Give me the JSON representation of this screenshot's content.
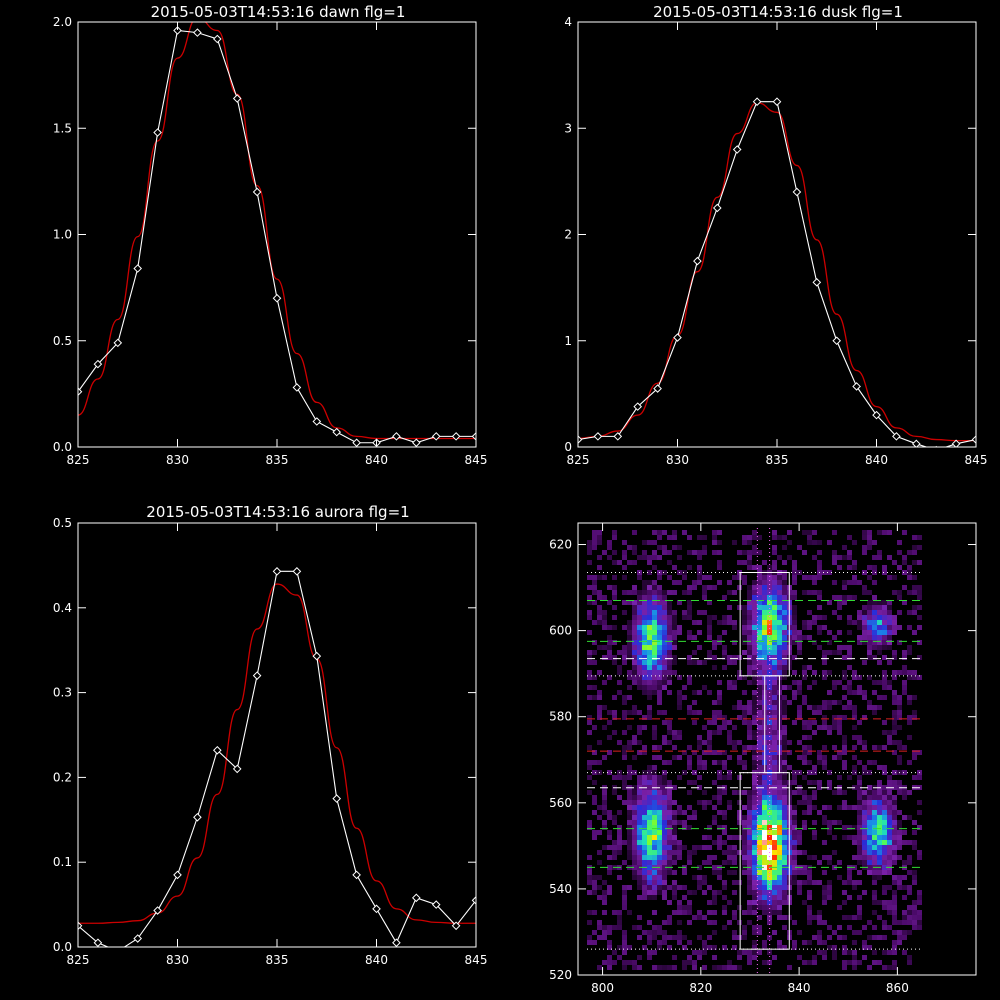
{
  "colors": {
    "background": "#000000",
    "axes": "#ffffff",
    "data_line": "#ffffff",
    "fit_line": "#cc0000"
  },
  "chart_data": [
    {
      "type": "line",
      "title": "2015-05-03T14:53:16 dawn flg=1",
      "xlabel": "",
      "ylabel": "",
      "xlim": [
        825,
        845
      ],
      "ylim": [
        0.0,
        2.0
      ],
      "xticks": [
        825,
        830,
        835,
        840,
        845
      ],
      "yticks": [
        0.0,
        0.5,
        1.0,
        1.5,
        2.0
      ],
      "ytick_labels": [
        "0.0",
        "0.5",
        "1.0",
        "1.5",
        "2.0"
      ],
      "series": [
        {
          "style": "white-line-diamond-markers",
          "x": [
            825,
            826,
            827,
            828,
            829,
            830,
            831,
            832,
            833,
            834,
            835,
            836,
            837,
            838,
            839,
            840,
            841,
            842,
            843,
            844,
            845
          ],
          "y": [
            0.26,
            0.39,
            0.49,
            0.84,
            1.48,
            1.96,
            1.95,
            1.92,
            1.64,
            1.2,
            0.7,
            0.28,
            0.12,
            0.07,
            0.02,
            0.02,
            0.05,
            0.02,
            0.05,
            0.05,
            0.05
          ]
        },
        {
          "style": "red-gaussian-fit",
          "x": [
            825,
            826,
            827,
            828,
            829,
            830,
            831,
            832,
            833,
            834,
            835,
            836,
            837,
            838,
            839,
            840,
            841,
            842,
            843,
            844,
            845
          ],
          "y": [
            0.15,
            0.32,
            0.6,
            0.99,
            1.44,
            1.83,
            2.02,
            1.96,
            1.66,
            1.23,
            0.79,
            0.44,
            0.21,
            0.09,
            0.05,
            0.04,
            0.04,
            0.04,
            0.04,
            0.04,
            0.04
          ]
        }
      ]
    },
    {
      "type": "line",
      "title": "2015-05-03T14:53:16 dusk flg=1",
      "xlabel": "",
      "ylabel": "",
      "xlim": [
        825,
        845
      ],
      "ylim": [
        0,
        4
      ],
      "xticks": [
        825,
        830,
        835,
        840,
        845
      ],
      "yticks": [
        0,
        1,
        2,
        3,
        4
      ],
      "ytick_labels": [
        "0",
        "1",
        "2",
        "3",
        "4"
      ],
      "series": [
        {
          "style": "white-line-diamond-markers",
          "x": [
            825,
            826,
            827,
            828,
            829,
            830,
            831,
            832,
            833,
            834,
            835,
            836,
            837,
            838,
            839,
            840,
            841,
            842,
            843,
            844,
            845
          ],
          "y": [
            0.07,
            0.1,
            0.1,
            0.38,
            0.55,
            1.03,
            1.75,
            2.25,
            2.8,
            3.25,
            3.25,
            2.4,
            1.55,
            1.0,
            0.57,
            0.3,
            0.1,
            0.03,
            -0.03,
            0.03,
            0.07
          ]
        },
        {
          "style": "red-gaussian-fit",
          "x": [
            825,
            826,
            827,
            828,
            829,
            830,
            831,
            832,
            833,
            834,
            835,
            836,
            837,
            838,
            839,
            840,
            841,
            842,
            843,
            844,
            845
          ],
          "y": [
            0.08,
            0.1,
            0.15,
            0.3,
            0.6,
            1.05,
            1.65,
            2.35,
            2.95,
            3.24,
            3.15,
            2.65,
            1.95,
            1.25,
            0.72,
            0.38,
            0.18,
            0.1,
            0.07,
            0.06,
            0.06
          ]
        }
      ]
    },
    {
      "type": "line",
      "title": "2015-05-03T14:53:16 aurora flg=1",
      "xlabel": "",
      "ylabel": "",
      "xlim": [
        825,
        845
      ],
      "ylim": [
        0.0,
        0.5
      ],
      "xticks": [
        825,
        830,
        835,
        840,
        845
      ],
      "yticks": [
        0.0,
        0.1,
        0.2,
        0.3,
        0.4,
        0.5
      ],
      "ytick_labels": [
        "0.0",
        "0.1",
        "0.2",
        "0.3",
        "0.4",
        "0.5"
      ],
      "series": [
        {
          "style": "white-line-diamond-markers",
          "x": [
            825,
            826,
            827,
            828,
            829,
            830,
            831,
            832,
            833,
            834,
            835,
            836,
            837,
            838,
            839,
            840,
            841,
            842,
            843,
            844,
            845
          ],
          "y": [
            0.025,
            0.005,
            -0.005,
            0.01,
            0.043,
            0.085,
            0.153,
            0.232,
            0.21,
            0.32,
            0.443,
            0.443,
            0.343,
            0.175,
            0.085,
            0.045,
            0.005,
            0.058,
            0.05,
            0.025,
            0.055
          ]
        },
        {
          "style": "red-gaussian-fit",
          "x": [
            825,
            826,
            827,
            828,
            829,
            830,
            831,
            832,
            833,
            834,
            835,
            836,
            837,
            838,
            839,
            840,
            841,
            842,
            843,
            844,
            845
          ],
          "y": [
            0.028,
            0.028,
            0.029,
            0.031,
            0.04,
            0.06,
            0.105,
            0.18,
            0.28,
            0.375,
            0.428,
            0.415,
            0.34,
            0.235,
            0.14,
            0.078,
            0.045,
            0.032,
            0.029,
            0.028,
            0.028
          ]
        }
      ]
    },
    {
      "type": "heatmap",
      "title": "",
      "xlabel": "",
      "ylabel": "",
      "xlim": [
        795,
        876
      ],
      "ylim": [
        520,
        625
      ],
      "xticks": [
        800,
        820,
        840,
        860
      ],
      "yticks": [
        520,
        540,
        560,
        580,
        600,
        620
      ],
      "ytick_labels": [
        "520",
        "540",
        "560",
        "580",
        "600",
        "620"
      ],
      "colorscale": [
        "#000000",
        "#4a0a68",
        "#7a20a8",
        "#2a2cd8",
        "#1a8ae8",
        "#20e0b8",
        "#60ff40",
        "#ffe000",
        "#ff2000",
        "#ffffff"
      ],
      "blobs": [
        {
          "x": 810,
          "y": 598,
          "sx": 2.2,
          "sy": 6,
          "amp": 0.62
        },
        {
          "x": 810,
          "y": 553,
          "sx": 2.2,
          "sy": 7,
          "amp": 0.6
        },
        {
          "x": 834,
          "y": 601,
          "sx": 2.4,
          "sy": 6,
          "amp": 0.68
        },
        {
          "x": 834,
          "y": 550,
          "sx": 2.4,
          "sy": 7,
          "amp": 1.0
        },
        {
          "x": 856,
          "y": 601,
          "sx": 1.8,
          "sy": 3,
          "amp": 0.4
        },
        {
          "x": 856,
          "y": 553,
          "sx": 2.2,
          "sy": 5,
          "amp": 0.56
        },
        {
          "x": 834,
          "y": 575,
          "sx": 2.0,
          "sy": 10,
          "amp": 0.2
        }
      ],
      "vertical_lines": [
        {
          "x": 831.5,
          "color": "#ff66ff",
          "style": "dotted"
        },
        {
          "x": 834.0,
          "color": "#ff66ff",
          "style": "dotted"
        }
      ],
      "horizontal_lines": [
        {
          "y": 613.5,
          "color": "#ffffff",
          "style": "dotted"
        },
        {
          "y": 607.0,
          "color": "#33dd33",
          "style": "dashed"
        },
        {
          "y": 597.5,
          "color": "#33dd33",
          "style": "dashed"
        },
        {
          "y": 593.5,
          "color": "#ffffff",
          "style": "dashed"
        },
        {
          "y": 589.5,
          "color": "#ffffff",
          "style": "dotted"
        },
        {
          "y": 579.5,
          "color": "#dd2222",
          "style": "dashed"
        },
        {
          "y": 572.0,
          "color": "#dd2222",
          "style": "dashed"
        },
        {
          "y": 567.0,
          "color": "#ffffff",
          "style": "dotted"
        },
        {
          "y": 563.5,
          "color": "#ffffff",
          "style": "dashed"
        },
        {
          "y": 554.0,
          "color": "#33dd33",
          "style": "dashed"
        },
        {
          "y": 545.0,
          "color": "#33dd33",
          "style": "dashed"
        },
        {
          "y": 526.0,
          "color": "#ffffff",
          "style": "dotted"
        }
      ],
      "boxes": [
        {
          "x0": 828,
          "x1": 838,
          "y0": 589.5,
          "y1": 613.5
        },
        {
          "x0": 828,
          "x1": 838,
          "y0": 526.0,
          "y1": 567.0
        },
        {
          "x0": 833,
          "x1": 836,
          "y0": 567.0,
          "y1": 589.5
        }
      ]
    }
  ]
}
